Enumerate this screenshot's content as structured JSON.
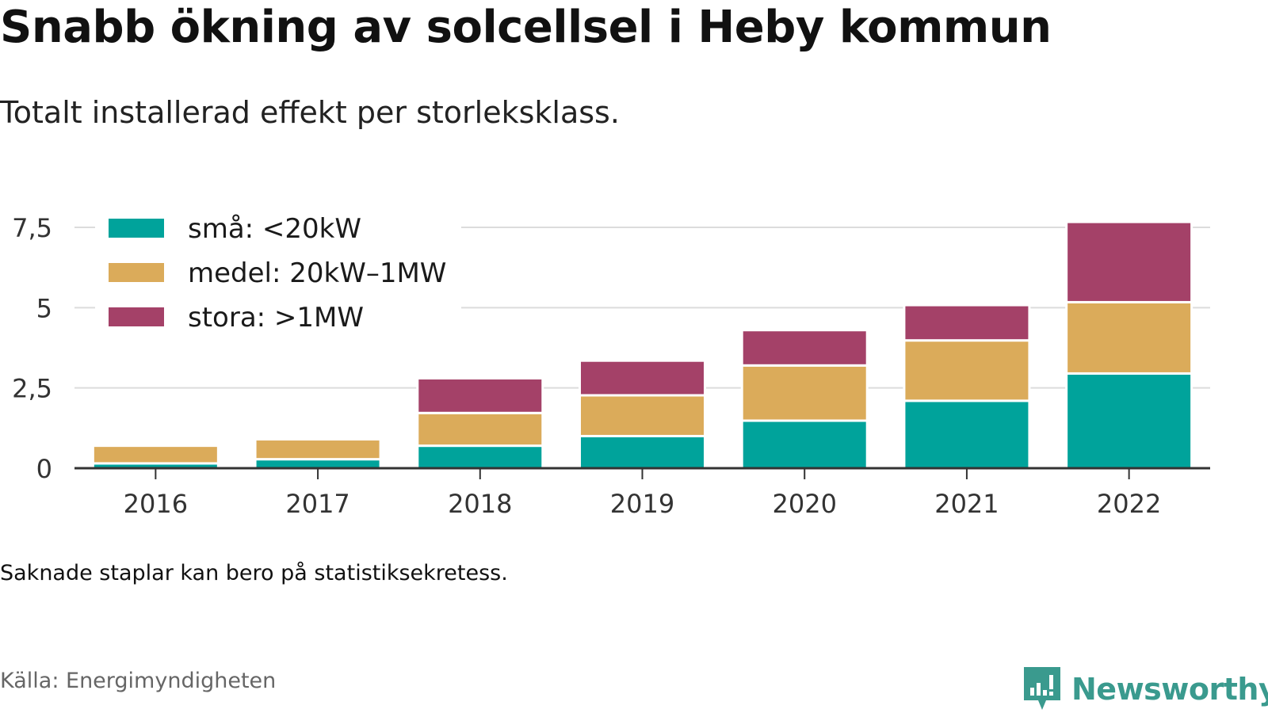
{
  "title": "Snabb ökning av solcellsel i Heby kommun",
  "subtitle": "Totalt installerad effekt per storleksklass.",
  "note": "Saknade staplar kan bero på statistiksekretess.",
  "source": "Källa: Energimyndigheten",
  "brand": {
    "name": "Newsworthy",
    "icon": "newsworthy-logo-icon",
    "color": "#3a9a8e"
  },
  "chart_data": {
    "type": "bar",
    "stacked": true,
    "categories": [
      "2016",
      "2017",
      "2018",
      "2019",
      "2020",
      "2021",
      "2022"
    ],
    "series": [
      {
        "name": "små: <20kW",
        "color": "#00a39b",
        "values": [
          0.15,
          0.28,
          0.7,
          1.0,
          1.48,
          2.1,
          2.95
        ]
      },
      {
        "name": "medel: 20kW–1MW",
        "color": "#dbab5a",
        "values": [
          0.55,
          0.62,
          1.02,
          1.27,
          1.72,
          1.88,
          2.22
        ]
      },
      {
        "name": "stora: >1MW",
        "color": "#a44168",
        "values": [
          0.0,
          0.0,
          1.08,
          1.08,
          1.1,
          1.1,
          2.5
        ]
      }
    ],
    "yticks": [
      0,
      2.5,
      5,
      7.5
    ],
    "ytick_labels": [
      "0",
      "2,5",
      "5",
      "7,5"
    ],
    "ylim": [
      0,
      7.5
    ],
    "xlabel": "",
    "ylabel": "",
    "grid": true,
    "legend_position": "top-left"
  }
}
